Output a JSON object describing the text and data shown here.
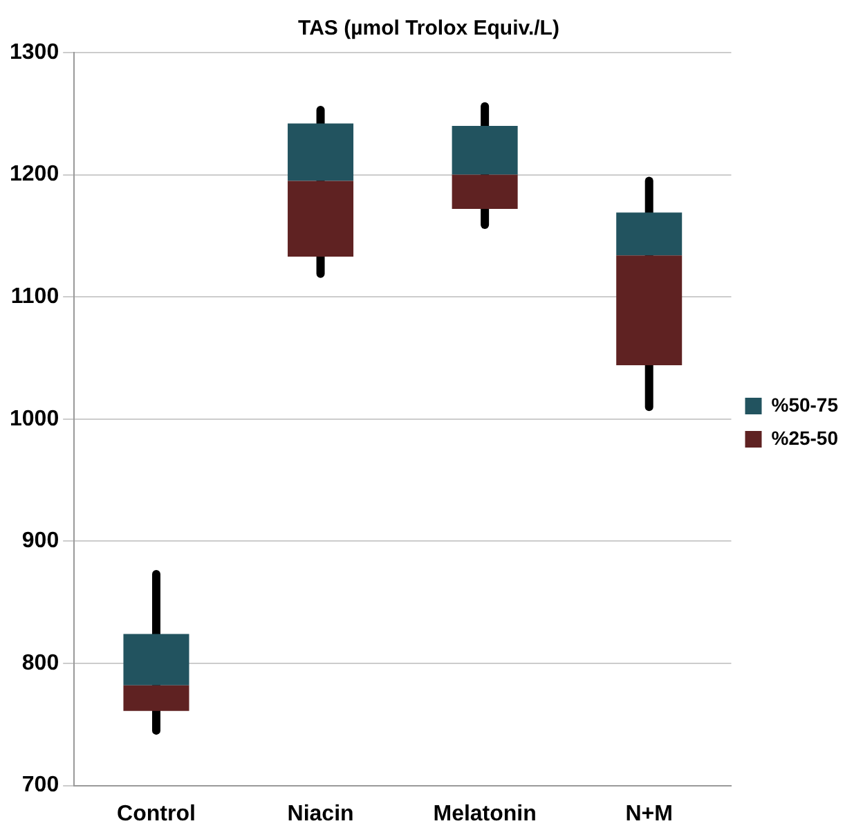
{
  "chart_data": {
    "type": "bar",
    "title": "TAS (µmol Trolox Equiv./L)",
    "categories": [
      "Control",
      "Niacin",
      "Melatonin",
      "N+M"
    ],
    "series": [
      {
        "name": "%25-50",
        "color": "#5f2222",
        "base": [
          761,
          1133,
          1172,
          1044
        ],
        "values": [
          21,
          62,
          28,
          90
        ],
        "errors": [
          [
            745,
            873
          ],
          [
            1119,
            1253
          ],
          [
            1159,
            1256
          ],
          [
            1010,
            1195
          ]
        ]
      },
      {
        "name": "%50-75",
        "color": "#22535f",
        "base": [
          782,
          1195,
          1200,
          1134
        ],
        "values": [
          42,
          47,
          40,
          35
        ]
      }
    ],
    "ylim": [
      700,
      1300
    ],
    "yticks": [
      700,
      800,
      900,
      1000,
      1100,
      1200,
      1300
    ],
    "grid": "y",
    "legend": "right"
  }
}
